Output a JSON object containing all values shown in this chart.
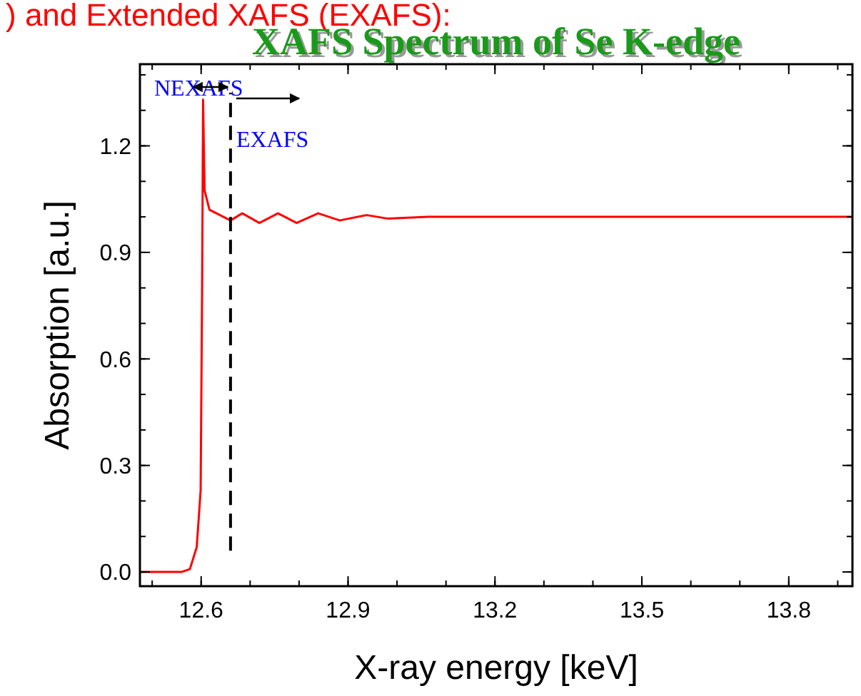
{
  "chart_data": {
    "type": "line",
    "title": "XAFS Spectrum of Se K-edge",
    "xlabel": "X-ray energy [keV]",
    "ylabel": "Absorption [a.u.]",
    "annotations": [
      ") and Extended XAFS (EXAFS):",
      "NEXAFS",
      "EXAFS"
    ],
    "x": [
      12.475,
      12.56,
      12.577,
      12.591,
      12.599,
      12.602,
      12.604,
      12.607,
      12.617,
      12.66,
      12.684,
      12.719,
      12.757,
      12.795,
      12.839,
      12.883,
      12.938,
      12.982,
      13.063,
      13.15,
      13.296,
      13.93
    ],
    "series": [
      {
        "color": "#ff0000",
        "values": [
          0,
          0,
          0.008,
          0.07,
          0.23,
          0.8,
          1.33,
          1.075,
          1.02,
          0.99,
          1.01,
          0.983,
          1.01,
          0.983,
          1.01,
          0.99,
          1.005,
          0.995,
          1.0,
          1.0,
          1.0,
          1.0
        ]
      }
    ],
    "xlim": [
      12.475,
      13.93
    ],
    "xticks": [
      12.6,
      12.9,
      13.2,
      13.5,
      13.8
    ],
    "ylim": [
      -0.04,
      1.43
    ],
    "yticks": [
      {
        "value": 0,
        "label": "0.0"
      },
      0.3,
      0.6,
      0.9,
      1.2
    ],
    "ref_lines": [
      {
        "axis": "x",
        "value": 12.66,
        "line_style": "dashed",
        "color": "#000000"
      }
    ],
    "grid": false,
    "marker": "none",
    "line_style": "solid"
  }
}
